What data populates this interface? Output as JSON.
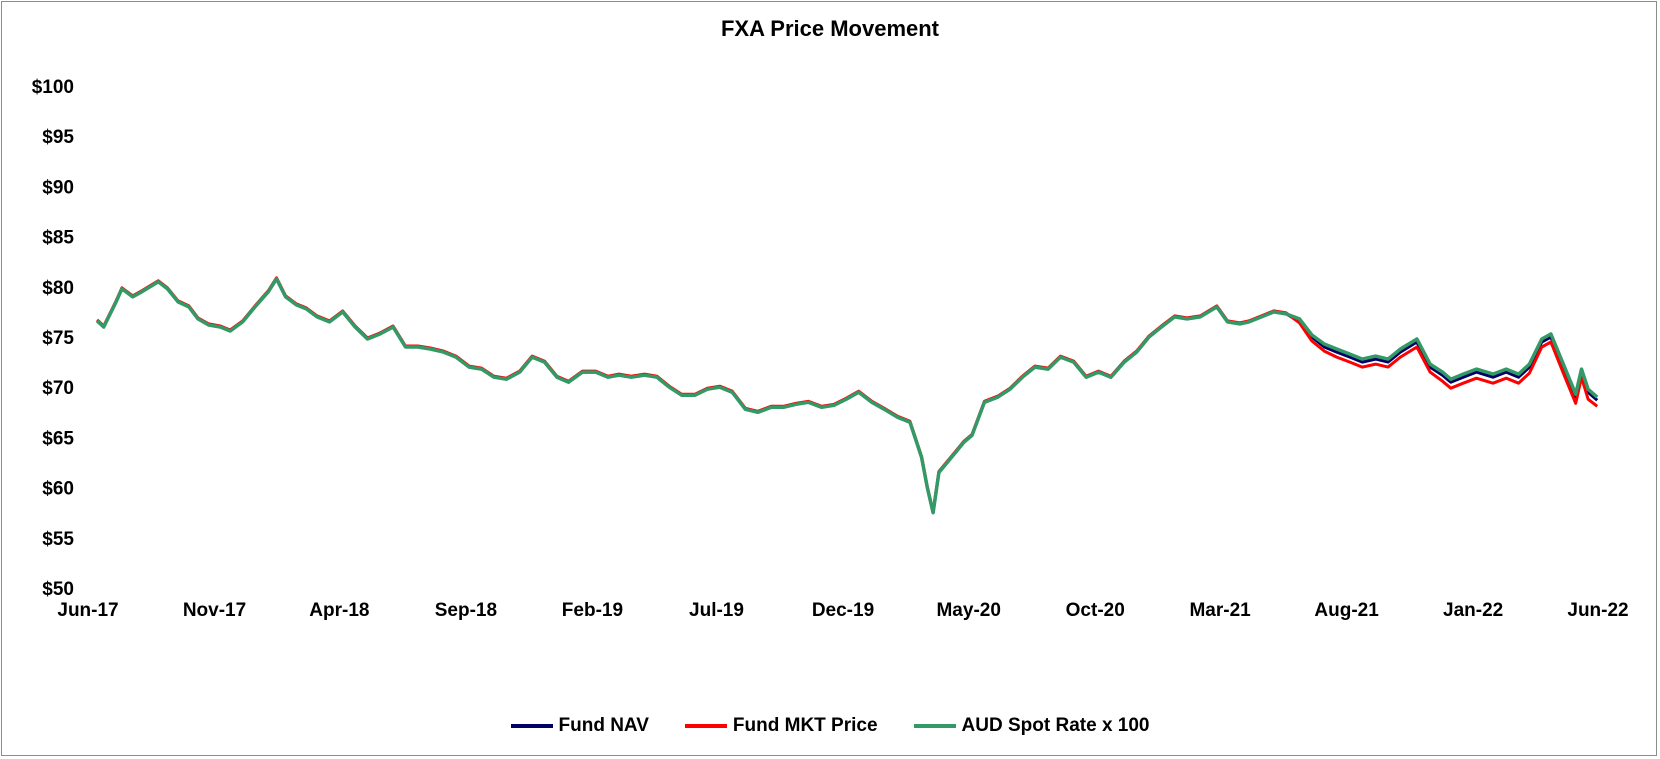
{
  "chart_data": {
    "type": "line",
    "title": "FXA Price Movement",
    "xlabel": "",
    "ylabel": "",
    "ylim": [
      50,
      100
    ],
    "yticks": [
      50,
      55,
      60,
      65,
      70,
      75,
      80,
      85,
      90,
      95,
      100
    ],
    "ytick_labels": [
      "$50",
      "$55",
      "$60",
      "$65",
      "$70",
      "$75",
      "$80",
      "$85",
      "$90",
      "$95",
      "$100"
    ],
    "xlim": [
      "2017-06-01",
      "2022-06-01"
    ],
    "xticks": [
      "2017-06-01",
      "2017-11-01",
      "2018-04-01",
      "2018-09-01",
      "2019-02-01",
      "2019-07-01",
      "2019-12-01",
      "2020-05-01",
      "2020-10-01",
      "2021-03-01",
      "2021-08-01",
      "2022-01-01",
      "2022-06-01"
    ],
    "xtick_labels": [
      "Jun-17",
      "Nov-17",
      "Apr-18",
      "Sep-18",
      "Feb-19",
      "Jul-19",
      "Dec-19",
      "May-20",
      "Oct-20",
      "Mar-21",
      "Aug-21",
      "Jan-22",
      "Jun-22"
    ],
    "grid": false,
    "legend_position": "bottom",
    "x": [
      "2017-06-12",
      "2017-06-20",
      "2017-07-05",
      "2017-07-12",
      "2017-07-25",
      "2017-08-05",
      "2017-08-15",
      "2017-08-25",
      "2017-09-05",
      "2017-09-18",
      "2017-10-01",
      "2017-10-12",
      "2017-10-25",
      "2017-11-08",
      "2017-11-20",
      "2017-12-05",
      "2017-12-20",
      "2018-01-05",
      "2018-01-15",
      "2018-01-26",
      "2018-02-08",
      "2018-02-20",
      "2018-03-05",
      "2018-03-20",
      "2018-04-05",
      "2018-04-20",
      "2018-05-05",
      "2018-05-20",
      "2018-06-05",
      "2018-06-20",
      "2018-07-05",
      "2018-07-20",
      "2018-08-05",
      "2018-08-20",
      "2018-09-05",
      "2018-09-20",
      "2018-10-05",
      "2018-10-20",
      "2018-11-05",
      "2018-11-20",
      "2018-12-05",
      "2018-12-20",
      "2019-01-03",
      "2019-01-20",
      "2019-02-05",
      "2019-02-20",
      "2019-03-05",
      "2019-03-20",
      "2019-04-05",
      "2019-04-20",
      "2019-05-05",
      "2019-05-20",
      "2019-06-05",
      "2019-06-20",
      "2019-07-05",
      "2019-07-20",
      "2019-08-05",
      "2019-08-20",
      "2019-09-05",
      "2019-09-20",
      "2019-10-05",
      "2019-10-20",
      "2019-11-05",
      "2019-11-20",
      "2019-12-05",
      "2019-12-20",
      "2020-01-05",
      "2020-01-20",
      "2020-02-05",
      "2020-02-20",
      "2020-03-05",
      "2020-03-12",
      "2020-03-19",
      "2020-03-26",
      "2020-04-02",
      "2020-04-15",
      "2020-04-25",
      "2020-05-05",
      "2020-05-20",
      "2020-06-05",
      "2020-06-20",
      "2020-07-05",
      "2020-07-20",
      "2020-08-05",
      "2020-08-20",
      "2020-09-05",
      "2020-09-20",
      "2020-10-05",
      "2020-10-20",
      "2020-11-05",
      "2020-11-20",
      "2020-12-05",
      "2020-12-20",
      "2021-01-05",
      "2021-01-20",
      "2021-02-05",
      "2021-02-25",
      "2021-03-10",
      "2021-03-25",
      "2021-04-05",
      "2021-04-20",
      "2021-05-05",
      "2021-05-20",
      "2021-06-05",
      "2021-06-20",
      "2021-07-05",
      "2021-07-20",
      "2021-08-05",
      "2021-08-20",
      "2021-09-05",
      "2021-09-20",
      "2021-10-05",
      "2021-10-25",
      "2021-11-10",
      "2021-11-25",
      "2021-12-05",
      "2021-12-20",
      "2022-01-05",
      "2022-01-25",
      "2022-02-10",
      "2022-02-25",
      "2022-03-10",
      "2022-03-25",
      "2022-04-05",
      "2022-04-20",
      "2022-05-05",
      "2022-05-12",
      "2022-05-20",
      "2022-05-31"
    ],
    "series": [
      {
        "name": "Fund NAV",
        "color": "#000066",
        "values": [
          76.6,
          76.0,
          78.5,
          79.8,
          79.0,
          79.5,
          80.0,
          80.5,
          79.8,
          78.5,
          78.0,
          76.8,
          76.2,
          76.0,
          75.6,
          76.5,
          78.0,
          79.5,
          80.8,
          79.0,
          78.2,
          77.8,
          77.0,
          76.5,
          77.5,
          76.0,
          74.8,
          75.3,
          76.0,
          74.0,
          74.0,
          73.8,
          73.5,
          73.0,
          72.0,
          71.8,
          71.0,
          70.8,
          71.5,
          73.0,
          72.5,
          71.0,
          70.5,
          71.5,
          71.5,
          71.0,
          71.2,
          71.0,
          71.2,
          71.0,
          70.0,
          69.2,
          69.2,
          69.8,
          70.0,
          69.5,
          67.8,
          67.5,
          68.0,
          68.0,
          68.3,
          68.5,
          68.0,
          68.2,
          68.8,
          69.5,
          68.5,
          67.8,
          67.0,
          66.5,
          63.0,
          60.0,
          57.5,
          61.5,
          62.2,
          63.5,
          64.5,
          65.2,
          68.5,
          69.0,
          69.8,
          71.0,
          72.0,
          71.8,
          73.0,
          72.5,
          71.0,
          71.5,
          71.0,
          72.5,
          73.5,
          75.0,
          76.0,
          77.0,
          76.8,
          77.0,
          78.0,
          76.5,
          76.3,
          76.5,
          77.0,
          77.5,
          77.3,
          76.5,
          75.0,
          74.0,
          73.5,
          73.0,
          72.5,
          72.8,
          72.5,
          73.5,
          74.5,
          72.0,
          71.2,
          70.5,
          71.0,
          71.5,
          71.0,
          71.5,
          71.0,
          72.0,
          74.5,
          75.0,
          72.0,
          69.0,
          71.5,
          69.5,
          68.7
        ]
      },
      {
        "name": "Fund MKT Price",
        "color": "#ff0000",
        "values": [
          76.7,
          76.1,
          78.6,
          79.9,
          79.1,
          79.6,
          80.1,
          80.6,
          79.9,
          78.6,
          78.1,
          76.9,
          76.3,
          76.1,
          75.7,
          76.6,
          78.1,
          79.6,
          80.9,
          79.1,
          78.3,
          77.9,
          77.1,
          76.6,
          77.6,
          76.1,
          74.9,
          75.4,
          76.1,
          74.1,
          74.1,
          73.9,
          73.6,
          73.1,
          72.1,
          71.9,
          71.1,
          70.9,
          71.6,
          73.1,
          72.6,
          71.1,
          70.6,
          71.6,
          71.6,
          71.1,
          71.3,
          71.1,
          71.3,
          71.1,
          70.1,
          69.3,
          69.3,
          69.9,
          70.1,
          69.6,
          67.9,
          67.6,
          68.1,
          68.1,
          68.4,
          68.6,
          68.1,
          68.3,
          68.9,
          69.6,
          68.6,
          67.9,
          67.1,
          66.6,
          63.1,
          60.1,
          57.6,
          61.6,
          62.3,
          63.6,
          64.6,
          65.3,
          68.6,
          69.1,
          69.9,
          71.1,
          72.1,
          71.9,
          73.1,
          72.6,
          71.1,
          71.6,
          71.1,
          72.6,
          73.6,
          75.1,
          76.1,
          77.1,
          76.9,
          77.1,
          78.1,
          76.6,
          76.4,
          76.6,
          77.1,
          77.6,
          77.4,
          76.4,
          74.6,
          73.6,
          73.0,
          72.5,
          72.0,
          72.3,
          72.0,
          73.0,
          74.0,
          71.5,
          70.6,
          69.9,
          70.4,
          70.9,
          70.4,
          70.9,
          70.4,
          71.4,
          74.0,
          74.5,
          71.4,
          68.4,
          71.0,
          68.8,
          68.1
        ]
      },
      {
        "name": "AUD Spot Rate x 100",
        "color": "#339966",
        "values": [
          76.6,
          76.0,
          78.5,
          79.8,
          79.0,
          79.5,
          80.0,
          80.5,
          79.8,
          78.5,
          78.0,
          76.8,
          76.2,
          76.0,
          75.6,
          76.5,
          78.0,
          79.5,
          80.8,
          79.0,
          78.2,
          77.8,
          77.0,
          76.5,
          77.5,
          76.0,
          74.8,
          75.3,
          76.0,
          74.0,
          74.0,
          73.8,
          73.5,
          73.0,
          72.0,
          71.8,
          71.0,
          70.8,
          71.5,
          73.0,
          72.5,
          71.0,
          70.5,
          71.5,
          71.5,
          71.0,
          71.2,
          71.0,
          71.2,
          71.0,
          70.0,
          69.2,
          69.2,
          69.8,
          70.0,
          69.5,
          67.8,
          67.5,
          68.0,
          68.0,
          68.3,
          68.5,
          68.0,
          68.2,
          68.8,
          69.5,
          68.5,
          67.8,
          67.0,
          66.5,
          63.0,
          60.0,
          57.5,
          61.5,
          62.2,
          63.5,
          64.5,
          65.2,
          68.5,
          69.0,
          69.8,
          71.0,
          72.0,
          71.8,
          73.0,
          72.5,
          71.0,
          71.5,
          71.0,
          72.5,
          73.5,
          75.0,
          76.0,
          77.0,
          76.8,
          77.0,
          78.0,
          76.5,
          76.3,
          76.5,
          77.0,
          77.5,
          77.3,
          76.8,
          75.2,
          74.3,
          73.8,
          73.3,
          72.8,
          73.1,
          72.8,
          73.8,
          74.8,
          72.3,
          71.5,
          70.8,
          71.3,
          71.8,
          71.3,
          71.8,
          71.3,
          72.3,
          74.8,
          75.3,
          72.3,
          69.3,
          71.8,
          69.8,
          69.0
        ]
      }
    ]
  }
}
